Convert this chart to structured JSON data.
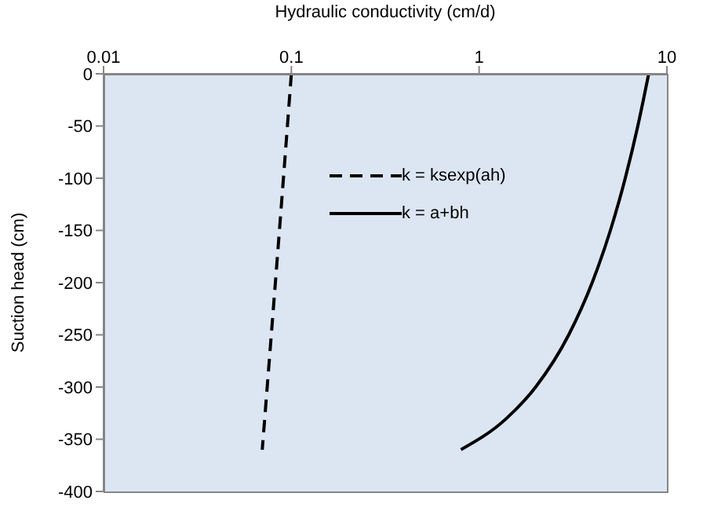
{
  "chart_data": {
    "type": "line",
    "xlabel": "Hydraulic conductivity (cm/d)",
    "ylabel": "Suction head (cm)",
    "log": "x",
    "xlim": [
      0.01,
      10
    ],
    "xticks": [
      0.01,
      0.1,
      1,
      10
    ],
    "ylim": [
      -400,
      0
    ],
    "yticks": [
      -400,
      -350,
      -300,
      -250,
      -200,
      -150,
      -100,
      -50,
      0
    ],
    "grid": false,
    "legend": "top",
    "marker": "none",
    "series": [
      {
        "name": "k = ksexp(ah)",
        "color": "#000000",
        "line_style": "dashed",
        "x": [
          0.1,
          0.089,
          0.079,
          0.07
        ],
        "values": [
          0,
          -120,
          -240,
          -360
        ]
      },
      {
        "name": "k = a+bh",
        "color": "#000000",
        "line_style": "solid",
        "x": [
          8,
          7,
          6,
          5,
          4,
          3,
          2,
          1.4,
          0.8
        ],
        "values": [
          0,
          -50,
          -100,
          -150,
          -200,
          -250,
          -300,
          -330,
          -360
        ]
      }
    ]
  }
}
